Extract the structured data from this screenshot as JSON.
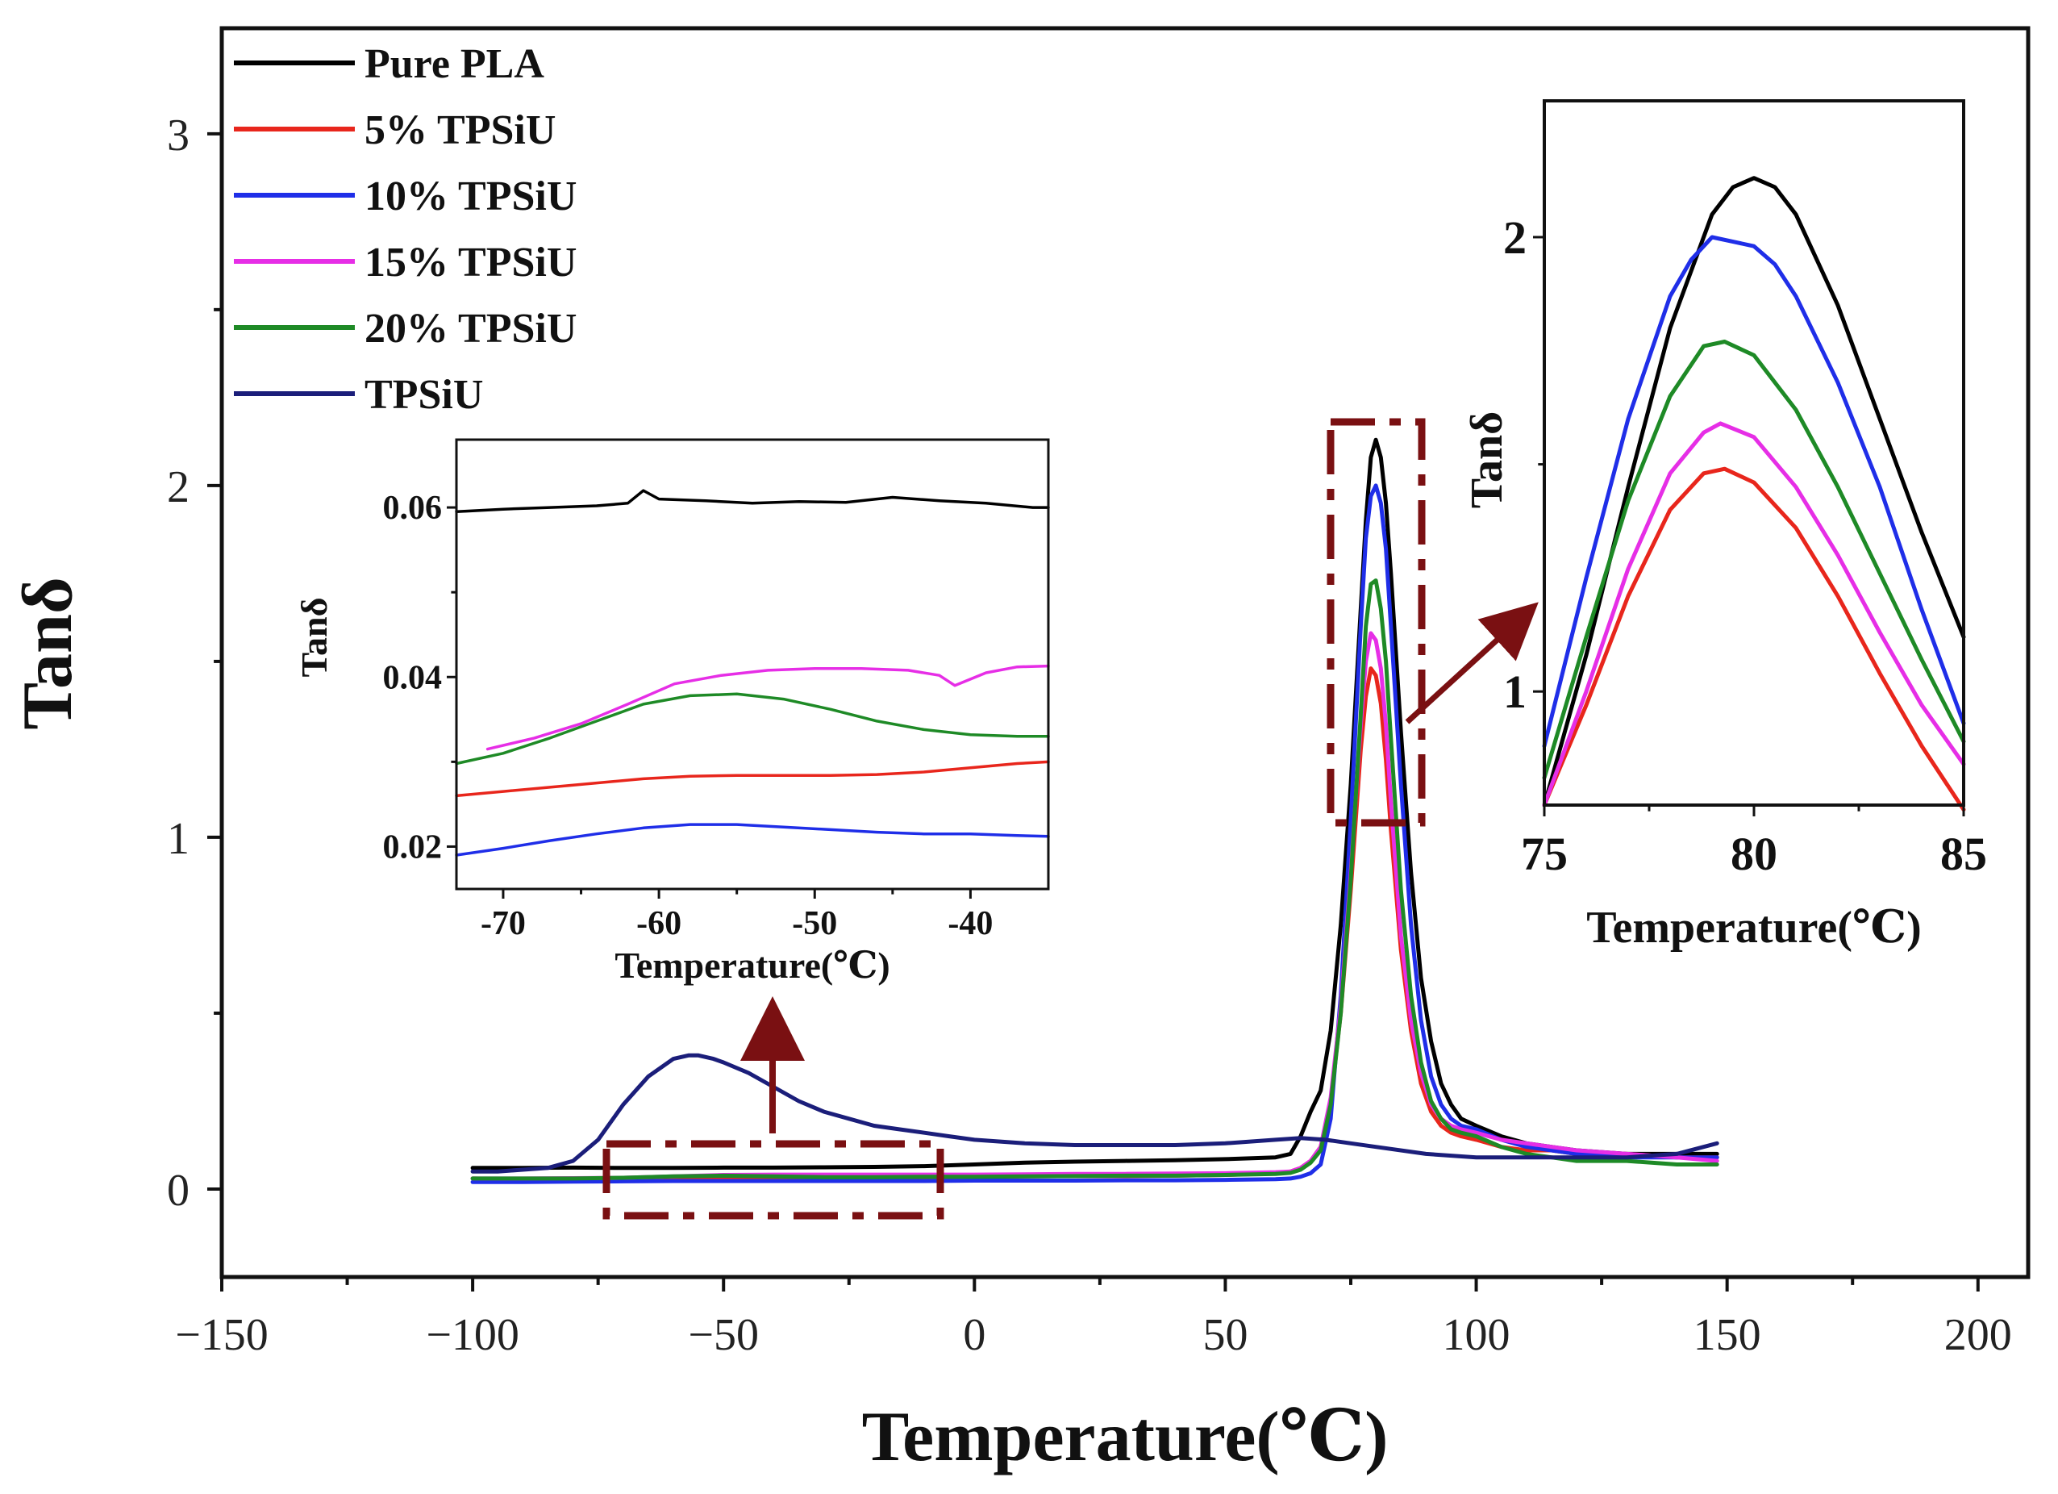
{
  "chart_data": [
    {
      "type": "line",
      "xlabel": "Temperature(℃)",
      "ylabel": "Tanδ",
      "xlim": [
        -150,
        210
      ],
      "ylim": [
        -0.25,
        3.3
      ],
      "xticks": [
        -150,
        -100,
        -50,
        0,
        50,
        100,
        150,
        200
      ],
      "yticks": [
        0,
        1,
        2,
        3
      ],
      "x_tick_labels": [
        "−150",
        "−100",
        "−50",
        "0",
        "50",
        "100",
        "150",
        "200"
      ],
      "y_tick_labels": [
        "0",
        "1",
        "2",
        "3"
      ],
      "grid": false,
      "legend_position": "top-left",
      "series": [
        {
          "name": "Pure PLA",
          "color": "#000000",
          "x": [
            -100,
            -90,
            -80,
            -70,
            -60,
            -50,
            -40,
            -30,
            -20,
            -10,
            0,
            10,
            20,
            30,
            40,
            50,
            60,
            63,
            65,
            67,
            69,
            71,
            73,
            75,
            77,
            78,
            79,
            80,
            81,
            82,
            83,
            85,
            87,
            89,
            91,
            93,
            95,
            97,
            100,
            105,
            110,
            115,
            120,
            130,
            140,
            148
          ],
          "y": [
            0.06,
            0.06,
            0.061,
            0.06,
            0.06,
            0.061,
            0.061,
            0.062,
            0.063,
            0.065,
            0.07,
            0.075,
            0.078,
            0.08,
            0.082,
            0.085,
            0.09,
            0.1,
            0.15,
            0.22,
            0.28,
            0.45,
            0.75,
            1.15,
            1.65,
            1.9,
            2.08,
            2.13,
            2.08,
            1.95,
            1.75,
            1.3,
            0.9,
            0.6,
            0.42,
            0.3,
            0.24,
            0.2,
            0.18,
            0.15,
            0.13,
            0.12,
            0.11,
            0.1,
            0.1,
            0.1
          ]
        },
        {
          "name": "5% TPSiU",
          "color": "#e8261c",
          "x": [
            -100,
            -90,
            -80,
            -70,
            -60,
            -50,
            -40,
            -30,
            -20,
            -10,
            0,
            10,
            20,
            30,
            40,
            50,
            60,
            63,
            65,
            67,
            69,
            71,
            73,
            75,
            77,
            78,
            79,
            80,
            81,
            82,
            83,
            85,
            87,
            89,
            91,
            93,
            95,
            97,
            100,
            105,
            110,
            115,
            120,
            130,
            140,
            148
          ],
          "y": [
            0.03,
            0.028,
            0.028,
            0.029,
            0.03,
            0.03,
            0.031,
            0.032,
            0.033,
            0.034,
            0.035,
            0.036,
            0.037,
            0.037,
            0.038,
            0.04,
            0.045,
            0.05,
            0.06,
            0.08,
            0.12,
            0.25,
            0.5,
            0.85,
            1.25,
            1.4,
            1.48,
            1.46,
            1.38,
            1.22,
            1.02,
            0.68,
            0.45,
            0.3,
            0.22,
            0.18,
            0.16,
            0.15,
            0.14,
            0.12,
            0.11,
            0.11,
            0.1,
            0.1,
            0.09,
            0.09
          ]
        },
        {
          "name": "10% TPSiU",
          "color": "#1f2ee8",
          "x": [
            -100,
            -90,
            -80,
            -70,
            -60,
            -50,
            -40,
            -30,
            -20,
            -10,
            0,
            10,
            20,
            30,
            40,
            50,
            60,
            63,
            65,
            67,
            69,
            71,
            73,
            75,
            77,
            78,
            79,
            80,
            81,
            82,
            83,
            85,
            87,
            89,
            91,
            93,
            95,
            97,
            100,
            105,
            110,
            115,
            120,
            130,
            140,
            148
          ],
          "y": [
            0.02,
            0.02,
            0.021,
            0.022,
            0.023,
            0.023,
            0.023,
            0.023,
            0.023,
            0.023,
            0.024,
            0.024,
            0.024,
            0.025,
            0.025,
            0.026,
            0.028,
            0.03,
            0.035,
            0.045,
            0.07,
            0.2,
            0.55,
            1.05,
            1.6,
            1.85,
            1.97,
            2.0,
            1.95,
            1.82,
            1.6,
            1.15,
            0.75,
            0.48,
            0.32,
            0.24,
            0.2,
            0.18,
            0.17,
            0.14,
            0.12,
            0.11,
            0.1,
            0.09,
            0.09,
            0.09
          ]
        },
        {
          "name": "15% TPSiU",
          "color": "#e62ee6",
          "x": [
            -100,
            -90,
            -80,
            -70,
            -60,
            -50,
            -40,
            -30,
            -20,
            -10,
            0,
            10,
            20,
            30,
            40,
            50,
            60,
            63,
            65,
            67,
            69,
            71,
            73,
            75,
            77,
            78,
            79,
            80,
            81,
            82,
            83,
            85,
            87,
            89,
            91,
            93,
            95,
            97,
            100,
            105,
            110,
            115,
            120,
            130,
            140,
            148
          ],
          "y": [
            0.03,
            0.03,
            0.031,
            0.032,
            0.036,
            0.04,
            0.041,
            0.041,
            0.041,
            0.041,
            0.041,
            0.042,
            0.043,
            0.043,
            0.044,
            0.045,
            0.048,
            0.05,
            0.06,
            0.08,
            0.12,
            0.26,
            0.52,
            0.9,
            1.32,
            1.5,
            1.58,
            1.56,
            1.48,
            1.32,
            1.1,
            0.72,
            0.48,
            0.33,
            0.24,
            0.2,
            0.18,
            0.17,
            0.16,
            0.14,
            0.13,
            0.12,
            0.11,
            0.1,
            0.09,
            0.08
          ]
        },
        {
          "name": "20% TPSiU",
          "color": "#1e8a26",
          "x": [
            -100,
            -90,
            -80,
            -70,
            -60,
            -50,
            -40,
            -30,
            -20,
            -10,
            0,
            10,
            20,
            30,
            40,
            50,
            60,
            63,
            65,
            67,
            69,
            71,
            73,
            75,
            77,
            78,
            79,
            80,
            81,
            82,
            83,
            85,
            87,
            89,
            91,
            93,
            95,
            97,
            100,
            105,
            110,
            115,
            120,
            130,
            140,
            148
          ],
          "y": [
            0.03,
            0.03,
            0.03,
            0.032,
            0.036,
            0.038,
            0.036,
            0.034,
            0.034,
            0.035,
            0.035,
            0.036,
            0.037,
            0.038,
            0.038,
            0.04,
            0.043,
            0.046,
            0.055,
            0.075,
            0.11,
            0.24,
            0.5,
            0.88,
            1.35,
            1.6,
            1.72,
            1.73,
            1.65,
            1.5,
            1.28,
            0.85,
            0.55,
            0.36,
            0.25,
            0.2,
            0.17,
            0.16,
            0.15,
            0.12,
            0.1,
            0.09,
            0.08,
            0.08,
            0.07,
            0.07
          ]
        },
        {
          "name": "TPSiU",
          "color": "#1b1e7a",
          "x": [
            -100,
            -95,
            -90,
            -85,
            -80,
            -75,
            -70,
            -65,
            -60,
            -57,
            -55,
            -52,
            -50,
            -45,
            -40,
            -35,
            -30,
            -25,
            -20,
            -15,
            -10,
            -5,
            0,
            10,
            20,
            30,
            40,
            50,
            60,
            65,
            70,
            75,
            80,
            90,
            100,
            110,
            120,
            130,
            140,
            148
          ],
          "y": [
            0.05,
            0.05,
            0.055,
            0.06,
            0.08,
            0.14,
            0.24,
            0.32,
            0.37,
            0.38,
            0.38,
            0.37,
            0.36,
            0.33,
            0.29,
            0.25,
            0.22,
            0.2,
            0.18,
            0.17,
            0.16,
            0.15,
            0.14,
            0.13,
            0.125,
            0.125,
            0.125,
            0.13,
            0.14,
            0.145,
            0.14,
            0.13,
            0.12,
            0.1,
            0.09,
            0.09,
            0.09,
            0.09,
            0.1,
            0.13
          ]
        }
      ]
    },
    {
      "type": "line",
      "xlabel": "Temperature(℃)",
      "ylabel": "Tanδ",
      "xlim": [
        -73,
        -35
      ],
      "ylim": [
        0.015,
        0.068
      ],
      "xticks": [
        -70,
        -60,
        -50,
        -40
      ],
      "yticks": [
        0.02,
        0.04,
        0.06
      ],
      "x_tick_labels": [
        "-70",
        "-60",
        "-50",
        "-40"
      ],
      "y_tick_labels": [
        "0.02",
        "0.04",
        "0.06"
      ],
      "grid": false,
      "series": [
        {
          "name": "Pure PLA",
          "color": "#000000",
          "x": [
            -73,
            -70,
            -67,
            -64,
            -62,
            -61,
            -60,
            -57,
            -54,
            -51,
            -48,
            -45,
            -42,
            -39,
            -36,
            -35
          ],
          "y": [
            0.0595,
            0.0598,
            0.06,
            0.0602,
            0.0605,
            0.062,
            0.061,
            0.0608,
            0.0605,
            0.0607,
            0.0606,
            0.0612,
            0.0608,
            0.0605,
            0.06,
            0.06
          ]
        },
        {
          "name": "5% TPSiU",
          "color": "#e8261c",
          "x": [
            -73,
            -70,
            -67,
            -64,
            -61,
            -58,
            -55,
            -52,
            -49,
            -46,
            -43,
            -40,
            -37,
            -35
          ],
          "y": [
            0.026,
            0.0265,
            0.027,
            0.0275,
            0.028,
            0.0283,
            0.0284,
            0.0284,
            0.0284,
            0.0285,
            0.0288,
            0.0293,
            0.0298,
            0.03
          ]
        },
        {
          "name": "10% TPSiU",
          "color": "#1f2ee8",
          "x": [
            -73,
            -70,
            -67,
            -64,
            -61,
            -58,
            -55,
            -52,
            -49,
            -46,
            -43,
            -40,
            -37,
            -35
          ],
          "y": [
            0.019,
            0.0198,
            0.0207,
            0.0215,
            0.0222,
            0.0226,
            0.0226,
            0.0223,
            0.022,
            0.0217,
            0.0215,
            0.0215,
            0.0213,
            0.0212
          ]
        },
        {
          "name": "15% TPSiU",
          "color": "#e62ee6",
          "x": [
            -71,
            -68,
            -65,
            -62,
            -59,
            -56,
            -53,
            -50,
            -47,
            -44,
            -42,
            -41,
            -39,
            -37,
            -35
          ],
          "y": [
            0.0315,
            0.0328,
            0.0345,
            0.0368,
            0.0392,
            0.0402,
            0.0408,
            0.041,
            0.041,
            0.0408,
            0.0402,
            0.039,
            0.0405,
            0.0412,
            0.0413
          ]
        },
        {
          "name": "20% TPSiU",
          "color": "#1e8a26",
          "x": [
            -73,
            -70,
            -67,
            -64,
            -61,
            -58,
            -55,
            -52,
            -49,
            -46,
            -43,
            -40,
            -37,
            -35
          ],
          "y": [
            0.0298,
            0.031,
            0.0328,
            0.0348,
            0.0368,
            0.0378,
            0.038,
            0.0374,
            0.0362,
            0.0348,
            0.0338,
            0.0332,
            0.033,
            0.033
          ]
        }
      ]
    },
    {
      "type": "line",
      "xlabel": "Temperature(℃)",
      "ylabel": "Tanδ",
      "xlim": [
        75,
        85
      ],
      "ylim": [
        0.75,
        2.3
      ],
      "xticks": [
        75,
        80,
        85
      ],
      "yticks": [
        1,
        2
      ],
      "x_tick_labels": [
        "75",
        "80",
        "85"
      ],
      "y_tick_labels": [
        "1",
        "2"
      ],
      "grid": false,
      "series": [
        {
          "name": "Pure PLA",
          "color": "#000000",
          "x": [
            75,
            76,
            77,
            78,
            79,
            79.5,
            80,
            80.5,
            81,
            82,
            83,
            84,
            85
          ],
          "y": [
            0.75,
            1.08,
            1.45,
            1.8,
            2.05,
            2.11,
            2.13,
            2.11,
            2.05,
            1.85,
            1.6,
            1.35,
            1.12
          ]
        },
        {
          "name": "5% TPSiU",
          "color": "#e8261c",
          "x": [
            75,
            76,
            77,
            78,
            78.8,
            79.3,
            80,
            81,
            82,
            83,
            84,
            85
          ],
          "y": [
            0.75,
            0.97,
            1.21,
            1.4,
            1.48,
            1.49,
            1.46,
            1.36,
            1.21,
            1.04,
            0.88,
            0.74
          ]
        },
        {
          "name": "10% TPSiU",
          "color": "#1f2ee8",
          "x": [
            75,
            76,
            77,
            78,
            78.5,
            79,
            79.5,
            80,
            80.5,
            81,
            82,
            83,
            84,
            85
          ],
          "y": [
            0.88,
            1.25,
            1.6,
            1.87,
            1.95,
            2.0,
            1.99,
            1.98,
            1.94,
            1.87,
            1.68,
            1.45,
            1.18,
            0.93
          ]
        },
        {
          "name": "15% TPSiU",
          "color": "#e62ee6",
          "x": [
            75,
            76,
            77,
            78,
            78.8,
            79.2,
            80,
            81,
            82,
            83,
            84,
            85
          ],
          "y": [
            0.75,
            1.0,
            1.27,
            1.48,
            1.57,
            1.59,
            1.56,
            1.45,
            1.3,
            1.13,
            0.97,
            0.84
          ]
        },
        {
          "name": "20% TPSiU",
          "color": "#1e8a26",
          "x": [
            75,
            76,
            77,
            78,
            78.8,
            79.3,
            80,
            81,
            82,
            83,
            84,
            85
          ],
          "y": [
            0.81,
            1.12,
            1.42,
            1.65,
            1.76,
            1.77,
            1.74,
            1.62,
            1.45,
            1.26,
            1.07,
            0.89
          ]
        }
      ]
    }
  ]
}
